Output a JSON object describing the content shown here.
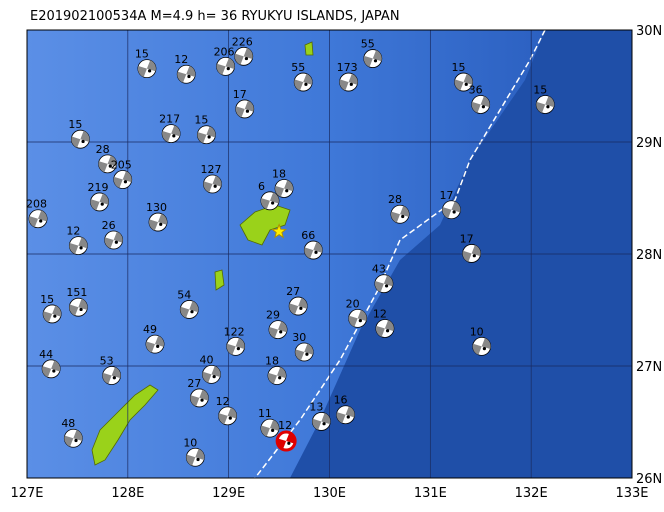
{
  "header": {
    "title": "E201902100534A  M=4.9  h=  36  RYUKYU  ISLANDS, JAPAN"
  },
  "map": {
    "lon_range": [
      127,
      133
    ],
    "lat_range": [
      26,
      30
    ],
    "lon_ticks": [
      {
        "value": 127,
        "label": "127E"
      },
      {
        "value": 128,
        "label": "128E"
      },
      {
        "value": 129,
        "label": "129E"
      },
      {
        "value": 130,
        "label": "130E"
      },
      {
        "value": 131,
        "label": "131E"
      },
      {
        "value": 132,
        "label": "132E"
      },
      {
        "value": 133,
        "label": "133E"
      }
    ],
    "lat_ticks": [
      {
        "value": 26,
        "label": "26N"
      },
      {
        "value": 27,
        "label": "27N"
      },
      {
        "value": 28,
        "label": "28N"
      },
      {
        "value": 29,
        "label": "29N"
      },
      {
        "value": 30,
        "label": "30N"
      }
    ],
    "main_event": {
      "lon": 129.57,
      "lat": 26.33,
      "depth": "12"
    },
    "epicenter_star": {
      "lon": 129.5,
      "lat": 28.2
    },
    "events": [
      {
        "lon": 128.11,
        "lat": 29.78,
        "depth": "15"
      },
      {
        "lon": 128.5,
        "lat": 29.73,
        "depth": "12"
      },
      {
        "lon": 128.89,
        "lat": 29.8,
        "depth": "206"
      },
      {
        "lon": 129.07,
        "lat": 29.89,
        "depth": "226"
      },
      {
        "lon": 129.66,
        "lat": 29.66,
        "depth": "55"
      },
      {
        "lon": 130.11,
        "lat": 29.66,
        "depth": "173"
      },
      {
        "lon": 130.35,
        "lat": 29.87,
        "depth": "55"
      },
      {
        "lon": 131.25,
        "lat": 29.66,
        "depth": "15"
      },
      {
        "lon": 131.42,
        "lat": 29.46,
        "depth": "36"
      },
      {
        "lon": 132.06,
        "lat": 29.46,
        "depth": "15"
      },
      {
        "lon": 127.45,
        "lat": 29.15,
        "depth": "15"
      },
      {
        "lon": 128.35,
        "lat": 29.2,
        "depth": "217"
      },
      {
        "lon": 128.7,
        "lat": 29.19,
        "depth": "15"
      },
      {
        "lon": 129.08,
        "lat": 29.42,
        "depth": "17"
      },
      {
        "lon": 127.72,
        "lat": 28.93,
        "depth": "28"
      },
      {
        "lon": 127.87,
        "lat": 28.79,
        "depth": "205"
      },
      {
        "lon": 128.76,
        "lat": 28.75,
        "depth": "127"
      },
      {
        "lon": 129.47,
        "lat": 28.71,
        "depth": "18"
      },
      {
        "lon": 129.33,
        "lat": 28.6,
        "depth": "6"
      },
      {
        "lon": 127.64,
        "lat": 28.59,
        "depth": "219"
      },
      {
        "lon": 128.22,
        "lat": 28.41,
        "depth": "130"
      },
      {
        "lon": 127.03,
        "lat": 28.44,
        "depth": "208"
      },
      {
        "lon": 127.43,
        "lat": 28.2,
        "depth": "12"
      },
      {
        "lon": 127.78,
        "lat": 28.25,
        "depth": "26"
      },
      {
        "lon": 129.76,
        "lat": 28.16,
        "depth": "66"
      },
      {
        "lon": 130.62,
        "lat": 28.48,
        "depth": "28"
      },
      {
        "lon": 131.13,
        "lat": 28.52,
        "depth": "17"
      },
      {
        "lon": 131.33,
        "lat": 28.13,
        "depth": "17"
      },
      {
        "lon": 130.46,
        "lat": 27.86,
        "depth": "43"
      },
      {
        "lon": 129.61,
        "lat": 27.66,
        "depth": "27"
      },
      {
        "lon": 127.17,
        "lat": 27.59,
        "depth": "15"
      },
      {
        "lon": 127.43,
        "lat": 27.65,
        "depth": "151"
      },
      {
        "lon": 128.53,
        "lat": 27.63,
        "depth": "54"
      },
      {
        "lon": 128.19,
        "lat": 27.32,
        "depth": "49"
      },
      {
        "lon": 128.99,
        "lat": 27.3,
        "depth": "122"
      },
      {
        "lon": 129.41,
        "lat": 27.45,
        "depth": "29"
      },
      {
        "lon": 130.2,
        "lat": 27.55,
        "depth": "20"
      },
      {
        "lon": 130.47,
        "lat": 27.46,
        "depth": "12"
      },
      {
        "lon": 131.43,
        "lat": 27.3,
        "depth": "10"
      },
      {
        "lon": 129.67,
        "lat": 27.25,
        "depth": "30"
      },
      {
        "lon": 128.75,
        "lat": 27.05,
        "depth": "40"
      },
      {
        "lon": 127.76,
        "lat": 27.04,
        "depth": "53"
      },
      {
        "lon": 127.16,
        "lat": 27.1,
        "depth": "44"
      },
      {
        "lon": 129.4,
        "lat": 27.04,
        "depth": "18"
      },
      {
        "lon": 128.63,
        "lat": 26.84,
        "depth": "27"
      },
      {
        "lon": 129.84,
        "lat": 26.63,
        "depth": "13"
      },
      {
        "lon": 130.08,
        "lat": 26.69,
        "depth": "16"
      },
      {
        "lon": 128.91,
        "lat": 26.68,
        "depth": "12"
      },
      {
        "lon": 127.38,
        "lat": 26.48,
        "depth": "48"
      },
      {
        "lon": 128.59,
        "lat": 26.31,
        "depth": "10"
      },
      {
        "lon": 129.33,
        "lat": 26.57,
        "depth": "11"
      }
    ]
  }
}
